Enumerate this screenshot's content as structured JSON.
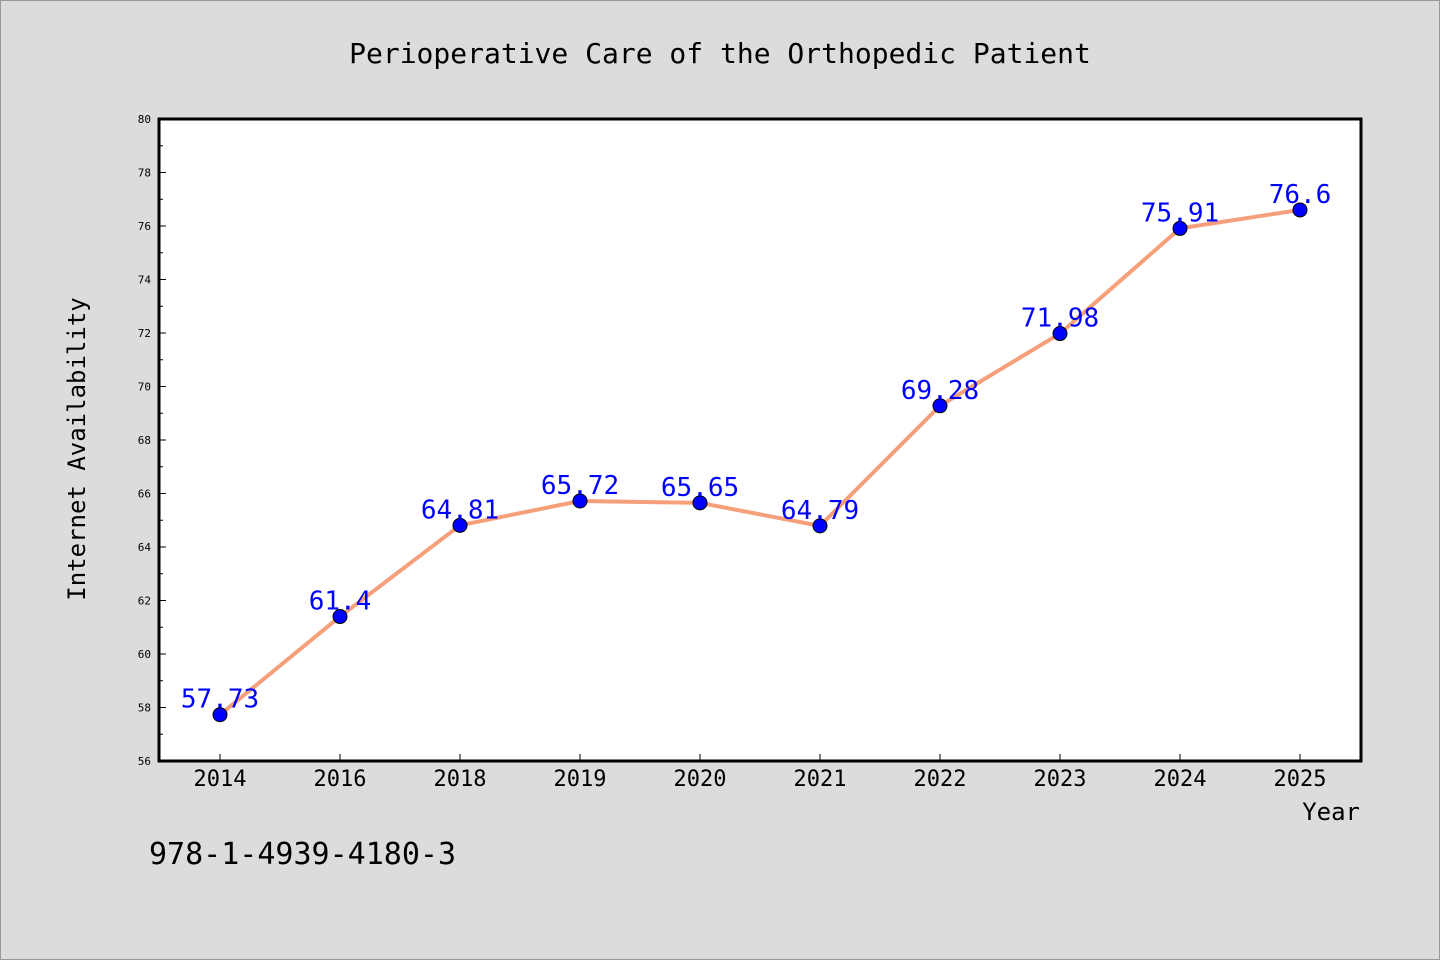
{
  "chart_data": {
    "type": "line",
    "title": "Perioperative Care of the Orthopedic Patient",
    "xlabel": "Year",
    "ylabel": "Internet Availability",
    "categories": [
      "2014",
      "2016",
      "2018",
      "2019",
      "2020",
      "2021",
      "2022",
      "2023",
      "2024",
      "2025"
    ],
    "series": [
      {
        "values": [
          57.73,
          61.4,
          64.81,
          65.72,
          65.65,
          64.79,
          69.28,
          71.98,
          75.91,
          76.6
        ],
        "line_color": "#f5a07a",
        "marker_color": "#0000ff"
      }
    ],
    "data_labels": [
      "57.73",
      "61.4",
      "64.81",
      "65.72",
      "65.65",
      "64.79",
      "69.28",
      "71.98",
      "75.91",
      "76.6"
    ],
    "ylim": [
      56,
      80
    ],
    "y_ticks": [
      "56",
      "58",
      "60",
      "62",
      "64",
      "66",
      "68",
      "70",
      "72",
      "74",
      "76",
      "78",
      "80"
    ],
    "grid": false,
    "legend": "none",
    "label_color": "#0000ff",
    "background": "#dcdcdc",
    "plot_background": "#ffffff"
  },
  "footer": {
    "isbn": "978-1-4939-4180-3"
  }
}
